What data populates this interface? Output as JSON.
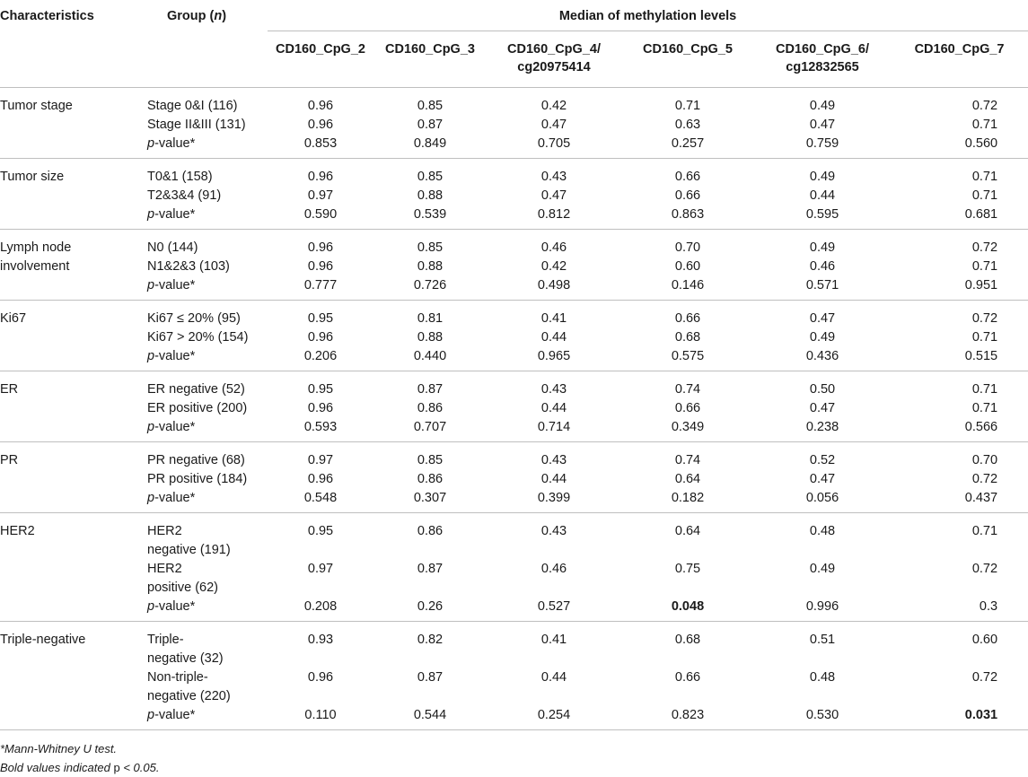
{
  "header": {
    "characteristics": "Characteristics",
    "group": "Group (",
    "group_n": "n",
    "group_close": ")",
    "span_title": "Median of methylation levels",
    "columns": [
      [
        "CD160_CpG_2"
      ],
      [
        "CD160_CpG_3"
      ],
      [
        "CD160_CpG_4/",
        "cg20975414"
      ],
      [
        "CD160_CpG_5"
      ],
      [
        "CD160_CpG_6/",
        "cg12832565"
      ],
      [
        "CD160_CpG_7"
      ]
    ]
  },
  "groups": [
    {
      "name": [
        "Tumor stage"
      ],
      "rows": [
        {
          "label": [
            "Stage 0&I (116)"
          ],
          "values": [
            "0.96",
            "0.85",
            "0.42",
            "0.71",
            "0.49",
            "0.72"
          ]
        },
        {
          "label": [
            "Stage II&III (131)"
          ],
          "values": [
            "0.96",
            "0.87",
            "0.47",
            "0.63",
            "0.47",
            "0.71"
          ]
        },
        {
          "label": [
            "p-value*"
          ],
          "pvalue": true,
          "values": [
            "0.853",
            "0.849",
            "0.705",
            "0.257",
            "0.759",
            "0.560"
          ]
        }
      ]
    },
    {
      "name": [
        "Tumor size"
      ],
      "rows": [
        {
          "label": [
            "T0&1 (158)"
          ],
          "values": [
            "0.96",
            "0.85",
            "0.43",
            "0.66",
            "0.49",
            "0.71"
          ]
        },
        {
          "label": [
            "T2&3&4 (91)"
          ],
          "values": [
            "0.97",
            "0.88",
            "0.47",
            "0.66",
            "0.44",
            "0.71"
          ]
        },
        {
          "label": [
            "p-value*"
          ],
          "pvalue": true,
          "values": [
            "0.590",
            "0.539",
            "0.812",
            "0.863",
            "0.595",
            "0.681"
          ]
        }
      ]
    },
    {
      "name": [
        "Lymph node",
        "involvement"
      ],
      "rows": [
        {
          "label": [
            "N0 (144)"
          ],
          "values": [
            "0.96",
            "0.85",
            "0.46",
            "0.70",
            "0.49",
            "0.72"
          ]
        },
        {
          "label": [
            "N1&2&3 (103)"
          ],
          "values": [
            "0.96",
            "0.88",
            "0.42",
            "0.60",
            "0.46",
            "0.71"
          ]
        },
        {
          "label": [
            "p-value*"
          ],
          "pvalue": true,
          "values": [
            "0.777",
            "0.726",
            "0.498",
            "0.146",
            "0.571",
            "0.951"
          ]
        }
      ]
    },
    {
      "name": [
        "Ki67"
      ],
      "rows": [
        {
          "label": [
            "Ki67 ≤ 20% (95)"
          ],
          "values": [
            "0.95",
            "0.81",
            "0.41",
            "0.66",
            "0.47",
            "0.72"
          ]
        },
        {
          "label": [
            "Ki67 > 20% (154)"
          ],
          "values": [
            "0.96",
            "0.88",
            "0.44",
            "0.68",
            "0.49",
            "0.71"
          ]
        },
        {
          "label": [
            "p-value*"
          ],
          "pvalue": true,
          "values": [
            "0.206",
            "0.440",
            "0.965",
            "0.575",
            "0.436",
            "0.515"
          ]
        }
      ]
    },
    {
      "name": [
        "ER"
      ],
      "rows": [
        {
          "label": [
            "ER negative (52)"
          ],
          "values": [
            "0.95",
            "0.87",
            "0.43",
            "0.74",
            "0.50",
            "0.71"
          ]
        },
        {
          "label": [
            "ER positive (200)"
          ],
          "values": [
            "0.96",
            "0.86",
            "0.44",
            "0.66",
            "0.47",
            "0.71"
          ]
        },
        {
          "label": [
            "p-value*"
          ],
          "pvalue": true,
          "values": [
            "0.593",
            "0.707",
            "0.714",
            "0.349",
            "0.238",
            "0.566"
          ]
        }
      ]
    },
    {
      "name": [
        "PR"
      ],
      "rows": [
        {
          "label": [
            "PR negative (68)"
          ],
          "values": [
            "0.97",
            "0.85",
            "0.43",
            "0.74",
            "0.52",
            "0.70"
          ]
        },
        {
          "label": [
            "PR positive (184)"
          ],
          "values": [
            "0.96",
            "0.86",
            "0.44",
            "0.64",
            "0.47",
            "0.72"
          ]
        },
        {
          "label": [
            "p-value*"
          ],
          "pvalue": true,
          "values": [
            "0.548",
            "0.307",
            "0.399",
            "0.182",
            "0.056",
            "0.437"
          ]
        }
      ]
    },
    {
      "name": [
        "HER2"
      ],
      "rows": [
        {
          "label": [
            "HER2",
            "negative (191)"
          ],
          "values": [
            "0.95",
            "0.86",
            "0.43",
            "0.64",
            "0.48",
            "0.71"
          ]
        },
        {
          "label": [
            "HER2",
            "positive (62)"
          ],
          "values": [
            "0.97",
            "0.87",
            "0.46",
            "0.75",
            "0.49",
            "0.72"
          ]
        },
        {
          "label": [
            "p-value*"
          ],
          "pvalue": true,
          "values": [
            "0.208",
            "0.26",
            "0.527",
            "0.048",
            "0.996",
            "0.3"
          ],
          "bold": [
            3
          ]
        }
      ]
    },
    {
      "name": [
        "Triple-negative"
      ],
      "rows": [
        {
          "label": [
            "Triple-",
            "negative (32)"
          ],
          "values": [
            "0.93",
            "0.82",
            "0.41",
            "0.68",
            "0.51",
            "0.60"
          ]
        },
        {
          "label": [
            "Non-triple-",
            "negative (220)"
          ],
          "values": [
            "0.96",
            "0.87",
            "0.44",
            "0.66",
            "0.48",
            "0.72"
          ]
        },
        {
          "label": [
            "p-value*"
          ],
          "pvalue": true,
          "values": [
            "0.110",
            "0.544",
            "0.254",
            "0.823",
            "0.530",
            "0.031"
          ],
          "bold": [
            5
          ]
        }
      ]
    }
  ],
  "notes": {
    "note1": "*Mann-Whitney U test.",
    "note2_a": "Bold values indicated ",
    "note2_p": "p",
    "note2_b": " < 0.05."
  }
}
